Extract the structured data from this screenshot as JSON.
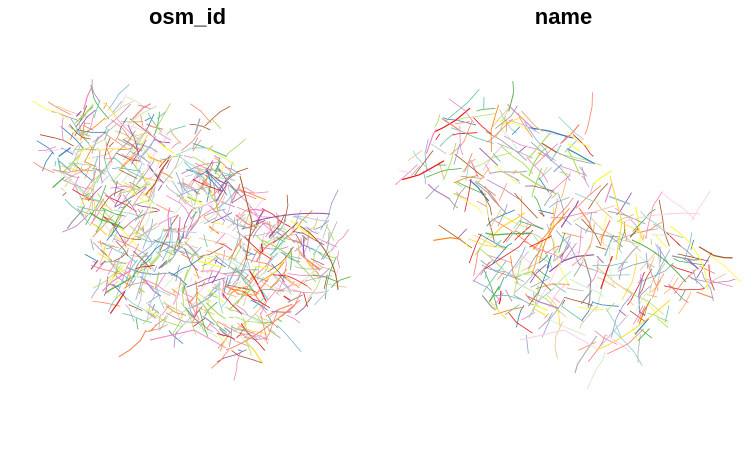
{
  "panels": [
    {
      "title": "osm_id"
    },
    {
      "title": "name"
    }
  ],
  "palette": [
    "#e41a1c",
    "#377eb8",
    "#4daf4a",
    "#984ea3",
    "#ff7f00",
    "#ffff33",
    "#a65628",
    "#f781bf",
    "#999999",
    "#66c2a5",
    "#fc8d62",
    "#8da0cb",
    "#e78ac3",
    "#a6d854",
    "#ffd92f",
    "#e5c494",
    "#b3b3b3",
    "#8dd3c7",
    "#bebada",
    "#fb8072",
    "#80b1d3",
    "#fdb462",
    "#b3de69",
    "#fccde5",
    "#bc80bd",
    "#ccebc5"
  ]
}
